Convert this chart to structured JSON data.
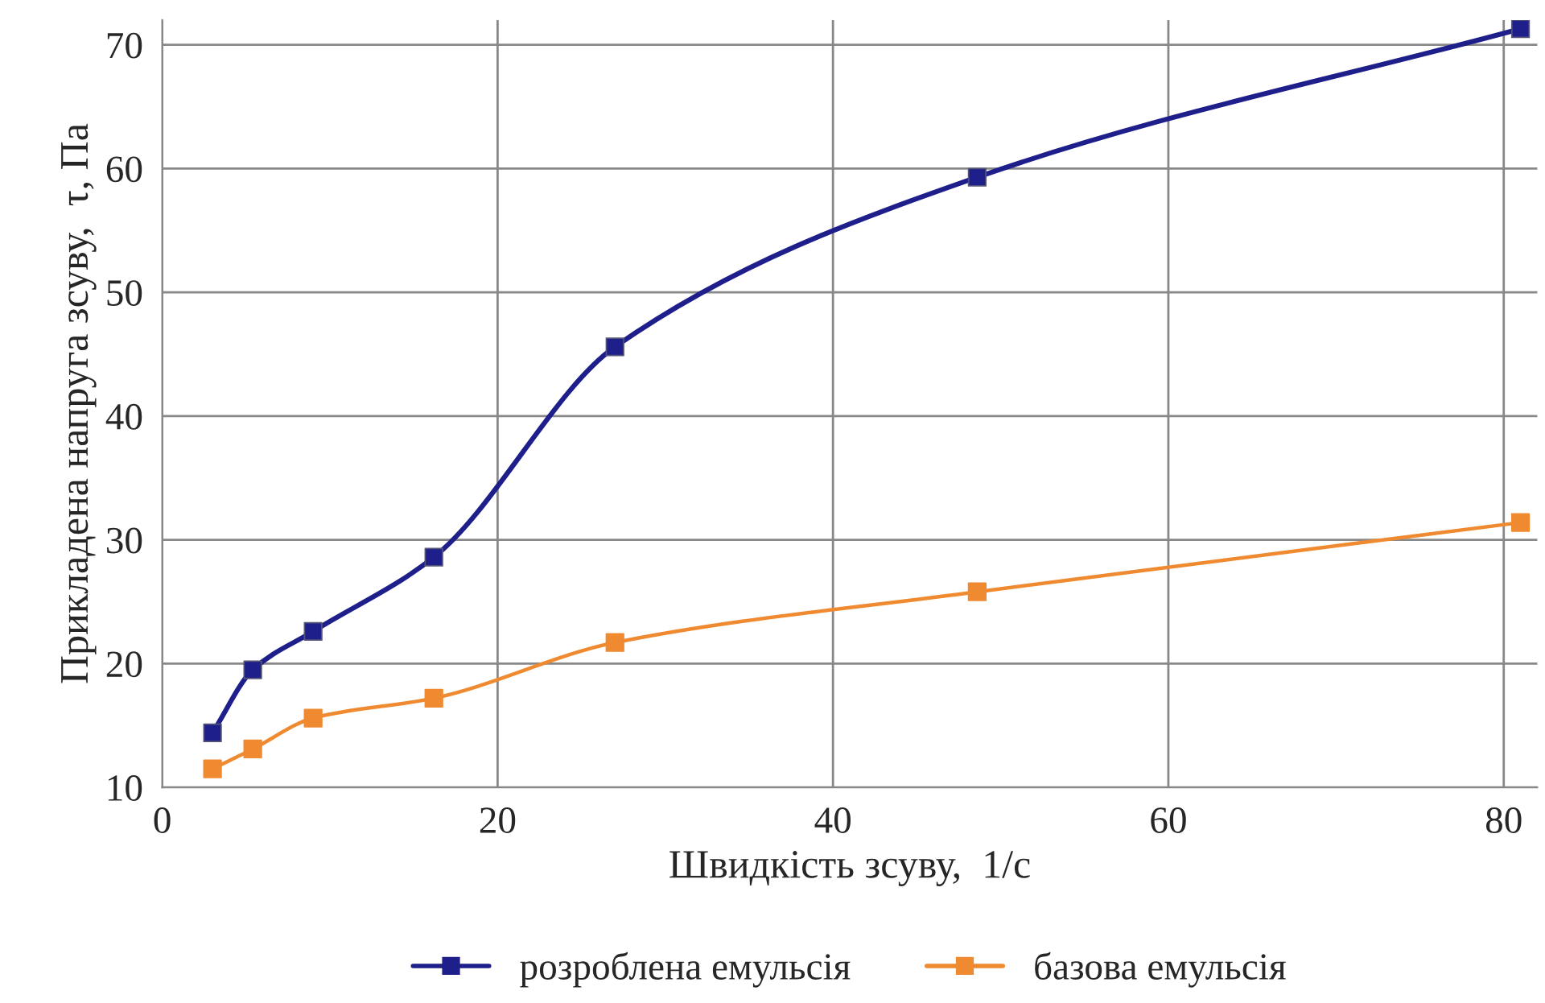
{
  "chart_data": {
    "type": "line",
    "xlabel": "Швидкість зсуву,  1/с",
    "ylabel": "Прикладена напруга зсуву,  τ, Па",
    "x": [
      3,
      5.4,
      9,
      16.2,
      27,
      48.6,
      81
    ],
    "series": [
      {
        "name": "розроблена емульсія",
        "color": "#1f1f8c",
        "values": [
          14.4,
          19.5,
          22.6,
          28.6,
          45.6,
          59.3,
          71.3
        ]
      },
      {
        "name": "базова емульсія",
        "color": "#f08a30",
        "values": [
          11.5,
          13.1,
          15.6,
          17.2,
          21.7,
          25.8,
          31.4
        ]
      }
    ],
    "xlim": [
      0,
      82
    ],
    "xticks": [
      0,
      20,
      40,
      60,
      80
    ],
    "ylim": [
      10,
      72
    ],
    "yticks": [
      10,
      20,
      30,
      40,
      50,
      60,
      70
    ],
    "grid": true,
    "legend": "bottom",
    "marker": "square",
    "line_style": "solid"
  }
}
